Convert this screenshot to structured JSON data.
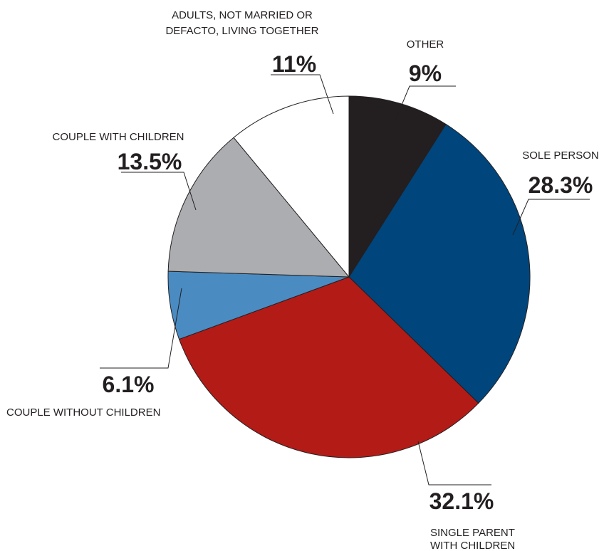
{
  "chart_data": {
    "type": "pie",
    "slices": [
      {
        "label": [
          "OTHER"
        ],
        "value": 9,
        "display": "9%",
        "color": "#231f20"
      },
      {
        "label": [
          "SOLE PERSON"
        ],
        "value": 28.3,
        "display": "28.3%",
        "color": "#00457c"
      },
      {
        "label": [
          "SINGLE PARENT",
          "WITH CHILDREN"
        ],
        "value": 32.1,
        "display": "32.1%",
        "color": "#b31b17"
      },
      {
        "label": [
          "COUPLE WITHOUT CHILDREN"
        ],
        "value": 6.1,
        "display": "6.1%",
        "color": "#4a8bc2"
      },
      {
        "label": [
          "COUPLE WITH CHILDREN"
        ],
        "value": 13.5,
        "display": "13.5%",
        "color": "#acadb0"
      },
      {
        "label": [
          "ADULTS, NOT MARRIED OR",
          "DEFACTO, LIVING TOGETHER"
        ],
        "value": 11,
        "display": "11%",
        "color": "#ffffff"
      }
    ],
    "start_angle": "12 o'clock",
    "direction": "clockwise",
    "legend": "none (direct labels)"
  }
}
